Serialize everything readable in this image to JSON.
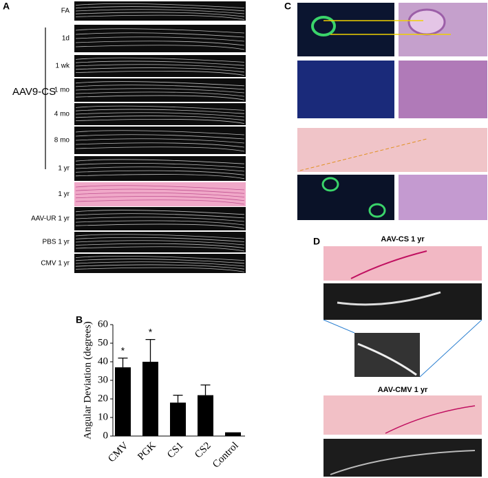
{
  "panels": {
    "A": {
      "label": "A",
      "group_label": "AAV9-CS",
      "rows": [
        {
          "label": "FA"
        },
        {
          "label": "1d"
        },
        {
          "label": "1 wk"
        },
        {
          "label": "1 mo"
        },
        {
          "label": "4 mo"
        },
        {
          "label": "8 mo"
        },
        {
          "label": "1 yr"
        },
        {
          "label": "1 yr"
        },
        {
          "label": "AAV-UR 1 yr"
        },
        {
          "label": "PBS 1 yr"
        },
        {
          "label": "CMV 1 yr"
        }
      ]
    },
    "B": {
      "label": "B"
    },
    "C": {
      "label": "C"
    },
    "D": {
      "label": "D",
      "titles": [
        "AAV-CS 1 yr",
        "AAV-CMV 1 yr"
      ]
    }
  },
  "chart_data": {
    "type": "bar",
    "y_label": "Angular Deviation (degrees)",
    "categories": [
      "CMV",
      "PGK",
      "CS1",
      "CS2",
      "Control"
    ],
    "values": [
      37,
      40,
      18,
      22,
      2
    ],
    "errors": [
      5,
      12,
      4,
      5.5,
      null
    ],
    "annotations": [
      "*",
      "*",
      null,
      null,
      null
    ],
    "color": "#000000",
    "ylim": [
      0,
      60
    ],
    "yticks": [
      0,
      10,
      20,
      30,
      40,
      50,
      60
    ]
  }
}
